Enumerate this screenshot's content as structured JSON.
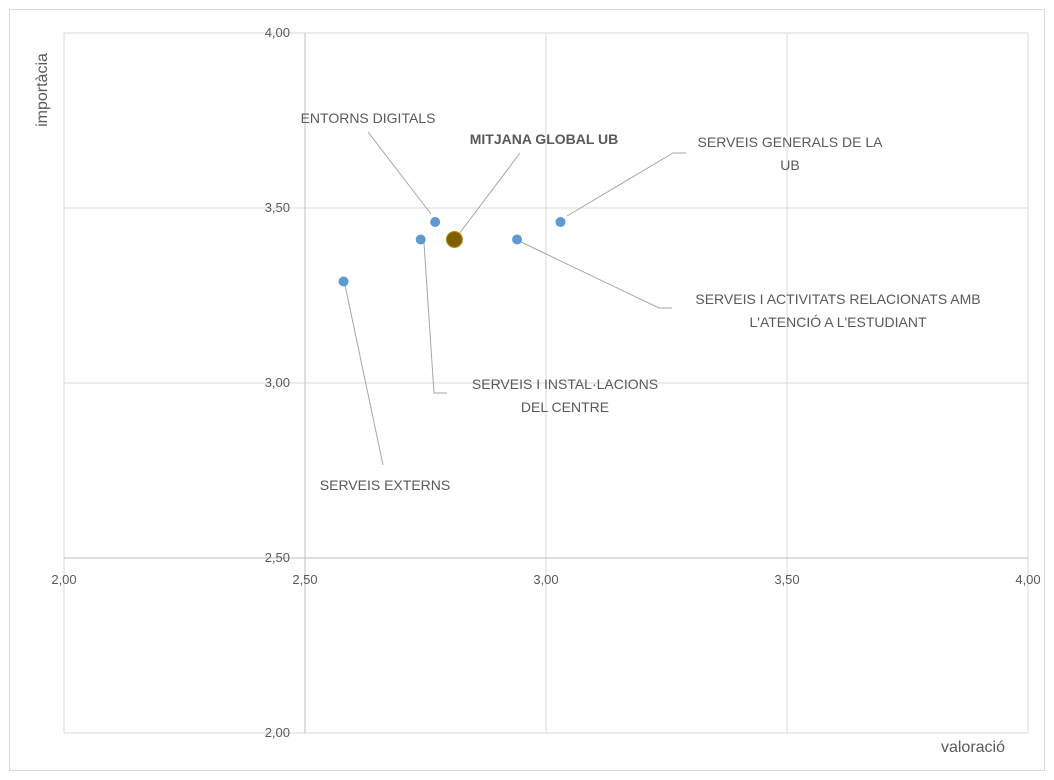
{
  "chart_data": {
    "type": "scatter",
    "title": "",
    "xlabel": "valoració",
    "ylabel": "importàcia",
    "xlim": [
      2.0,
      4.0
    ],
    "ylim": [
      2.0,
      4.0
    ],
    "x_ticks": [
      "2,00",
      "2,50",
      "3,00",
      "3,50",
      "4,00"
    ],
    "y_ticks": [
      "2,00",
      "2,50",
      "3,00",
      "3,50",
      "4,00"
    ],
    "axis_crossing": {
      "x_axis_at_y": 2.5,
      "y_axis_at_x": 2.5
    },
    "grid": true,
    "legend": "none",
    "colors": {
      "point": "#5b9bd5",
      "highlight": "#7f6000",
      "gridline": "#d9d9d9",
      "axis": "#bfbfbf",
      "leader": "#a6a6a6"
    },
    "points": [
      {
        "label_lines": [
          "ENTORNS DIGITALS"
        ],
        "x": 2.77,
        "y": 3.46,
        "bold": false
      },
      {
        "label_lines": [
          "MITJANA GLOBAL UB"
        ],
        "x": 2.81,
        "y": 3.41,
        "bold": true,
        "highlight": true
      },
      {
        "label_lines": [
          "SERVEIS GENERALS DE LA",
          "UB"
        ],
        "x": 3.03,
        "y": 3.46,
        "bold": false
      },
      {
        "label_lines": [
          "SERVEIS I ACTIVITATS RELACIONATS AMB",
          "L'ATENCIÓ A L'ESTUDIANT"
        ],
        "x": 2.94,
        "y": 3.41,
        "bold": false
      },
      {
        "label_lines": [
          "SERVEIS I INSTAL·LACIONS",
          "DEL CENTRE"
        ],
        "x": 2.74,
        "y": 3.41,
        "bold": false
      },
      {
        "label_lines": [
          "SERVEIS EXTERNS"
        ],
        "x": 2.58,
        "y": 3.29,
        "bold": false
      }
    ]
  }
}
